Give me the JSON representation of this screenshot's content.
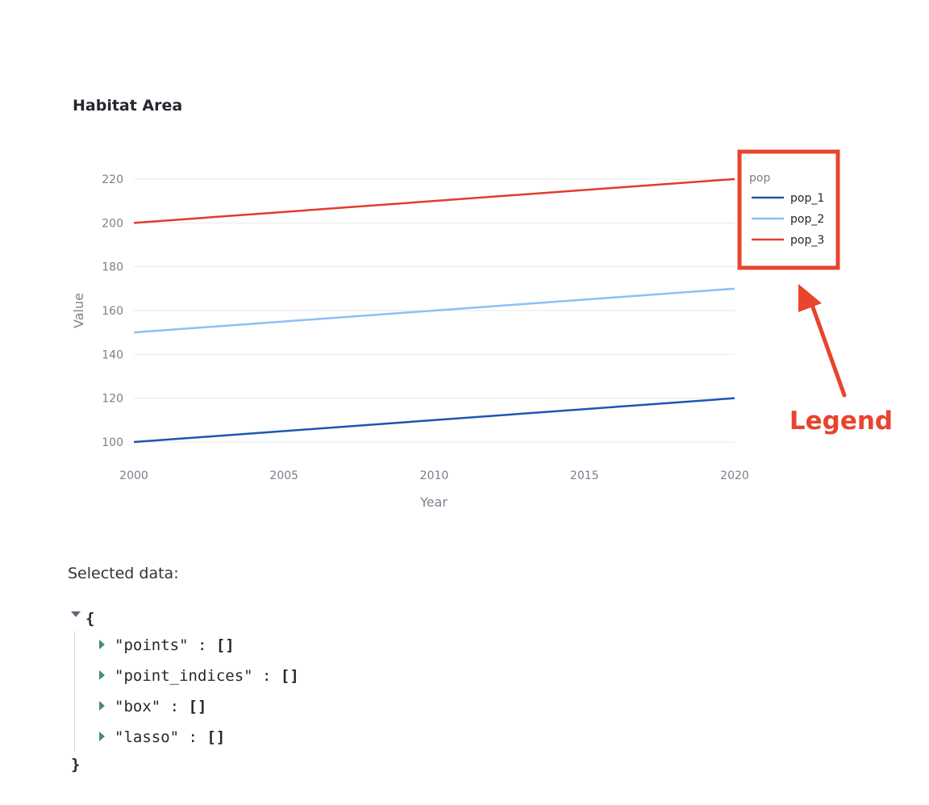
{
  "chart_data": {
    "type": "line",
    "title": "Habitat Area",
    "xlabel": "Year",
    "ylabel": "Value",
    "x": [
      2000,
      2020
    ],
    "xlim": [
      2000,
      2020
    ],
    "ylim": [
      90,
      225
    ],
    "xticks": [
      2000,
      2005,
      2010,
      2015,
      2020
    ],
    "yticks": [
      100,
      120,
      140,
      160,
      180,
      200,
      220
    ],
    "grid": true,
    "legend_title": "pop",
    "legend_position": "top-right",
    "series": [
      {
        "name": "pop_1",
        "color": "#1e55b3",
        "values": [
          100,
          120
        ]
      },
      {
        "name": "pop_2",
        "color": "#8cc0f5",
        "values": [
          150,
          170
        ]
      },
      {
        "name": "pop_3",
        "color": "#e23b2e",
        "values": [
          200,
          220
        ]
      }
    ],
    "annotation": {
      "text": "Legend",
      "color": "#e8442e"
    }
  },
  "selected": {
    "label": "Selected data:",
    "open_brace": "{",
    "close_brace": "}",
    "items": [
      {
        "key": "\"points\"",
        "sep": " : ",
        "value": "[]"
      },
      {
        "key": "\"point_indices\"",
        "sep": " : ",
        "value": "[]"
      },
      {
        "key": "\"box\"",
        "sep": " : ",
        "value": "[]"
      },
      {
        "key": "\"lasso\"",
        "sep": " : ",
        "value": "[]"
      }
    ]
  }
}
